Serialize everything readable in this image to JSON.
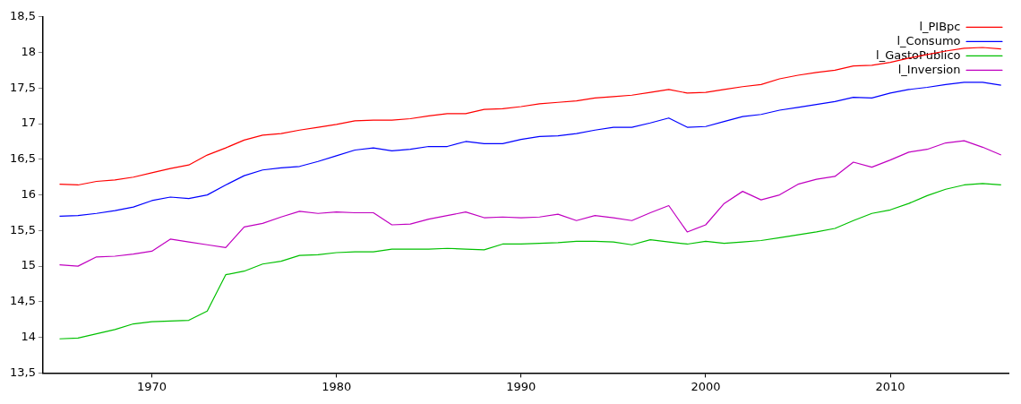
{
  "chart_data": {
    "type": "line",
    "x": [
      1965,
      1966,
      1967,
      1968,
      1969,
      1970,
      1971,
      1972,
      1973,
      1974,
      1975,
      1976,
      1977,
      1978,
      1979,
      1980,
      1981,
      1982,
      1983,
      1984,
      1985,
      1986,
      1987,
      1988,
      1989,
      1990,
      1991,
      1992,
      1993,
      1994,
      1995,
      1996,
      1997,
      1998,
      1999,
      2000,
      2001,
      2002,
      2003,
      2004,
      2005,
      2006,
      2007,
      2008,
      2009,
      2010,
      2011,
      2012,
      2013,
      2014,
      2015,
      2016
    ],
    "series": [
      {
        "name": "l_PIBpc",
        "color": "#ff0000",
        "values": [
          16.15,
          16.14,
          16.19,
          16.21,
          16.25,
          16.31,
          16.37,
          16.42,
          16.56,
          16.66,
          16.77,
          16.84,
          16.86,
          16.91,
          16.95,
          16.99,
          17.04,
          17.05,
          17.05,
          17.07,
          17.11,
          17.14,
          17.14,
          17.2,
          17.21,
          17.24,
          17.28,
          17.3,
          17.32,
          17.36,
          17.38,
          17.4,
          17.44,
          17.48,
          17.43,
          17.44,
          17.48,
          17.52,
          17.55,
          17.63,
          17.68,
          17.72,
          17.75,
          17.81,
          17.82,
          17.86,
          17.92,
          17.97,
          18.02,
          18.06,
          18.07,
          18.05
        ]
      },
      {
        "name": "l_Consumo",
        "color": "#0000ff",
        "values": [
          15.7,
          15.71,
          15.74,
          15.78,
          15.83,
          15.92,
          15.97,
          15.95,
          16.0,
          16.14,
          16.27,
          16.35,
          16.38,
          16.4,
          16.47,
          16.55,
          16.63,
          16.66,
          16.62,
          16.64,
          16.68,
          16.68,
          16.75,
          16.72,
          16.72,
          16.78,
          16.82,
          16.83,
          16.86,
          16.91,
          16.95,
          16.95,
          17.01,
          17.08,
          16.95,
          16.96,
          17.03,
          17.1,
          17.13,
          17.19,
          17.23,
          17.27,
          17.31,
          17.37,
          17.36,
          17.43,
          17.48,
          17.51,
          17.55,
          17.58,
          17.58,
          17.54
        ]
      },
      {
        "name": "l_GastoPublico",
        "color": "#00c000",
        "values": [
          13.98,
          13.99,
          14.05,
          14.11,
          14.19,
          14.22,
          14.23,
          14.24,
          14.37,
          14.88,
          14.93,
          15.03,
          15.07,
          15.15,
          15.16,
          15.19,
          15.2,
          15.2,
          15.24,
          15.24,
          15.24,
          15.25,
          15.24,
          15.23,
          15.31,
          15.31,
          15.32,
          15.33,
          15.35,
          15.35,
          15.34,
          15.3,
          15.37,
          15.34,
          15.31,
          15.35,
          15.32,
          15.34,
          15.36,
          15.4,
          15.44,
          15.48,
          15.53,
          15.64,
          15.74,
          15.79,
          15.88,
          15.99,
          16.08,
          16.14,
          16.16,
          16.14
        ]
      },
      {
        "name": "l_Inversion",
        "color": "#c000c0",
        "values": [
          15.02,
          15.0,
          15.13,
          15.14,
          15.17,
          15.21,
          15.38,
          15.34,
          15.3,
          15.26,
          15.55,
          15.6,
          15.69,
          15.77,
          15.74,
          15.76,
          15.75,
          15.75,
          15.58,
          15.59,
          15.66,
          15.71,
          15.76,
          15.68,
          15.69,
          15.68,
          15.69,
          15.73,
          15.64,
          15.71,
          15.68,
          15.64,
          15.75,
          15.85,
          15.48,
          15.58,
          15.88,
          16.05,
          15.93,
          16.0,
          16.15,
          16.22,
          16.26,
          16.46,
          16.39,
          16.49,
          16.6,
          16.64,
          16.73,
          16.76,
          16.67,
          16.56
        ]
      }
    ],
    "xlim": [
      1964.1,
      2016.4
    ],
    "xticks": [
      1970,
      1980,
      1990,
      2000,
      2010
    ],
    "ylim": [
      13.5,
      18.5
    ],
    "yticks": [
      {
        "value": 13.5,
        "label": "13,5"
      },
      14,
      {
        "value": 14.5,
        "label": "14,5"
      },
      15,
      {
        "value": 15.5,
        "label": "15,5"
      },
      16,
      {
        "value": 16.5,
        "label": "16,5"
      },
      17,
      {
        "value": 17.5,
        "label": "17,5"
      },
      18,
      {
        "value": 18.5,
        "label": "18,5"
      }
    ],
    "legend": "top right",
    "marker": "none",
    "line_style": "solid"
  }
}
